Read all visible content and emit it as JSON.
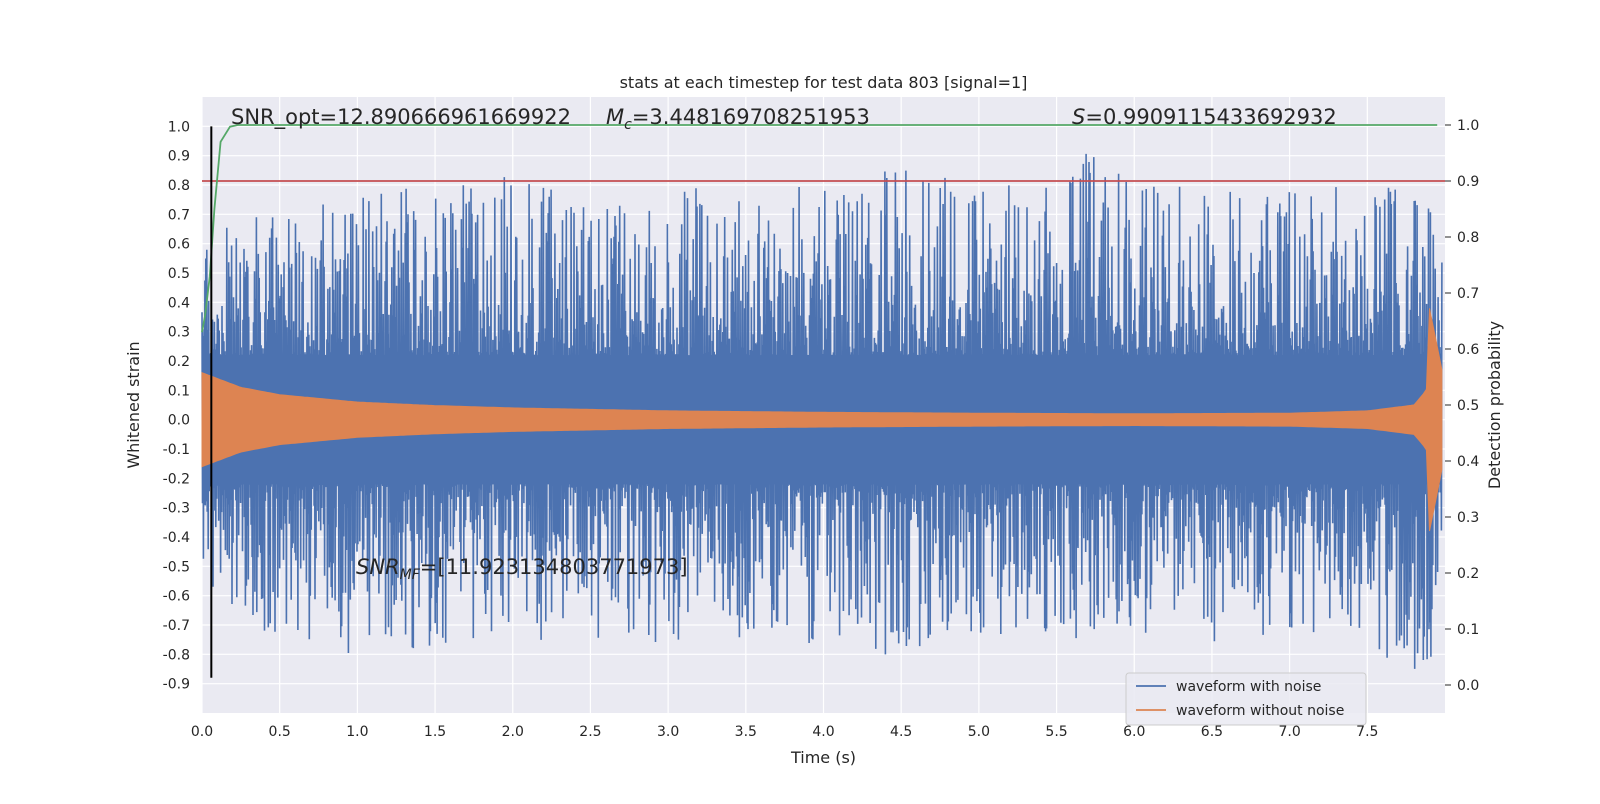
{
  "chart_data": {
    "type": "line",
    "title": "stats at each timestep for test data 803 [signal=1]",
    "xlabel": "Time (s)",
    "ylabel": "Whitened strain",
    "y2label": "Detection probability",
    "xlim": [
      0.0,
      8.0
    ],
    "ylim": [
      -1.0,
      1.1
    ],
    "y2lim": [
      -0.05,
      1.05
    ],
    "x_ticks": [
      0.0,
      0.5,
      1.0,
      1.5,
      2.0,
      2.5,
      3.0,
      3.5,
      4.0,
      4.5,
      5.0,
      5.5,
      6.0,
      6.5,
      7.0,
      7.5
    ],
    "x_tick_labels": [
      "0.0",
      "0.5",
      "1.0",
      "1.5",
      "2.0",
      "2.5",
      "3.0",
      "3.5",
      "4.0",
      "4.5",
      "5.0",
      "5.5",
      "6.0",
      "6.5",
      "7.0",
      "7.5"
    ],
    "y_ticks": [
      1.0,
      0.9,
      0.8,
      0.7,
      0.6,
      0.5,
      0.4,
      0.3,
      0.2,
      0.1,
      0.0,
      -0.1,
      -0.2,
      -0.3,
      -0.4,
      -0.5,
      -0.6,
      -0.7,
      -0.8,
      -0.9
    ],
    "y_tick_labels": [
      "1.0",
      "0.9",
      "0.8",
      "0.7",
      "0.6",
      "0.5",
      "0.4",
      "0.3",
      "0.2",
      "0.1",
      "0.0",
      "-0.1",
      "-0.2",
      "-0.3",
      "-0.4",
      "-0.5",
      "-0.6",
      "-0.7",
      "-0.8",
      "-0.9"
    ],
    "y2_ticks": [
      1.0,
      0.9,
      0.8,
      0.7,
      0.6,
      0.5,
      0.4,
      0.3,
      0.2,
      0.1,
      0.0
    ],
    "y2_tick_labels": [
      "1.0",
      "0.9",
      "0.8",
      "0.7",
      "0.6",
      "0.5",
      "0.4",
      "0.3",
      "0.2",
      "0.1",
      "0.0"
    ],
    "grid": true,
    "legend_position": "lower-right",
    "series": [
      {
        "name": "waveform with noise",
        "color": "#4c72b0",
        "description_values": "dense noisy strain, peak near 1.0 at t=5.82 s",
        "envelope_x": [
          0.0,
          0.5,
          1.0,
          1.5,
          2.0,
          2.5,
          3.0,
          3.5,
          4.0,
          4.5,
          5.0,
          5.5,
          5.82,
          6.0,
          6.5,
          7.0,
          7.5,
          7.9,
          7.98
        ],
        "envelope_max": [
          0.6,
          0.72,
          0.83,
          0.75,
          0.85,
          0.7,
          0.8,
          0.72,
          0.8,
          0.86,
          0.8,
          0.78,
          1.0,
          0.8,
          0.78,
          0.8,
          0.8,
          0.75,
          0.55
        ],
        "envelope_min": [
          -0.62,
          -0.72,
          -0.79,
          -0.75,
          -0.76,
          -0.72,
          -0.79,
          -0.72,
          -0.75,
          -0.79,
          -0.72,
          -0.75,
          -0.7,
          -0.72,
          -0.75,
          -0.72,
          -0.76,
          -0.88,
          -0.6
        ]
      },
      {
        "name": "waveform without noise",
        "color": "#dd8452",
        "envelope_x": [
          0.0,
          0.25,
          0.5,
          1.0,
          1.5,
          2.0,
          3.0,
          4.0,
          5.0,
          6.0,
          7.0,
          7.5,
          7.8,
          7.88,
          7.9,
          7.95,
          7.98
        ],
        "envelope_amp": [
          0.16,
          0.11,
          0.085,
          0.06,
          0.048,
          0.04,
          0.03,
          0.025,
          0.022,
          0.02,
          0.022,
          0.03,
          0.05,
          0.1,
          0.38,
          0.25,
          0.17
        ]
      },
      {
        "name": "detection probability",
        "axis": "right",
        "color": "#55a868",
        "x": [
          0.0,
          0.02,
          0.05,
          0.08,
          0.12,
          0.18,
          0.23,
          0.3,
          0.5,
          1.0,
          2.0,
          4.0,
          6.0,
          7.0,
          7.95
        ],
        "y": [
          0.63,
          0.66,
          0.73,
          0.85,
          0.97,
          0.997,
          1.0,
          1.0,
          1.0,
          1.0,
          1.0,
          1.0,
          1.0,
          1.0,
          1.0
        ]
      }
    ],
    "threshold_line": {
      "axis": "right",
      "y": 0.9,
      "color": "#c44e52"
    },
    "vertical_line": {
      "x": 0.06,
      "color": "#000000"
    },
    "annotations": {
      "snr_opt": "SNR_opt=12.890666961669922",
      "mc_symbol": "M",
      "mc_sub": "c",
      "mc_value": "=3.448169708251953",
      "s_symbol": "S",
      "s_value": "=0.9909115433692932",
      "snr_mf_symbol": "SNR",
      "snr_mf_sub": "MF",
      "snr_mf_value": "=[11.923134803771973]"
    }
  }
}
